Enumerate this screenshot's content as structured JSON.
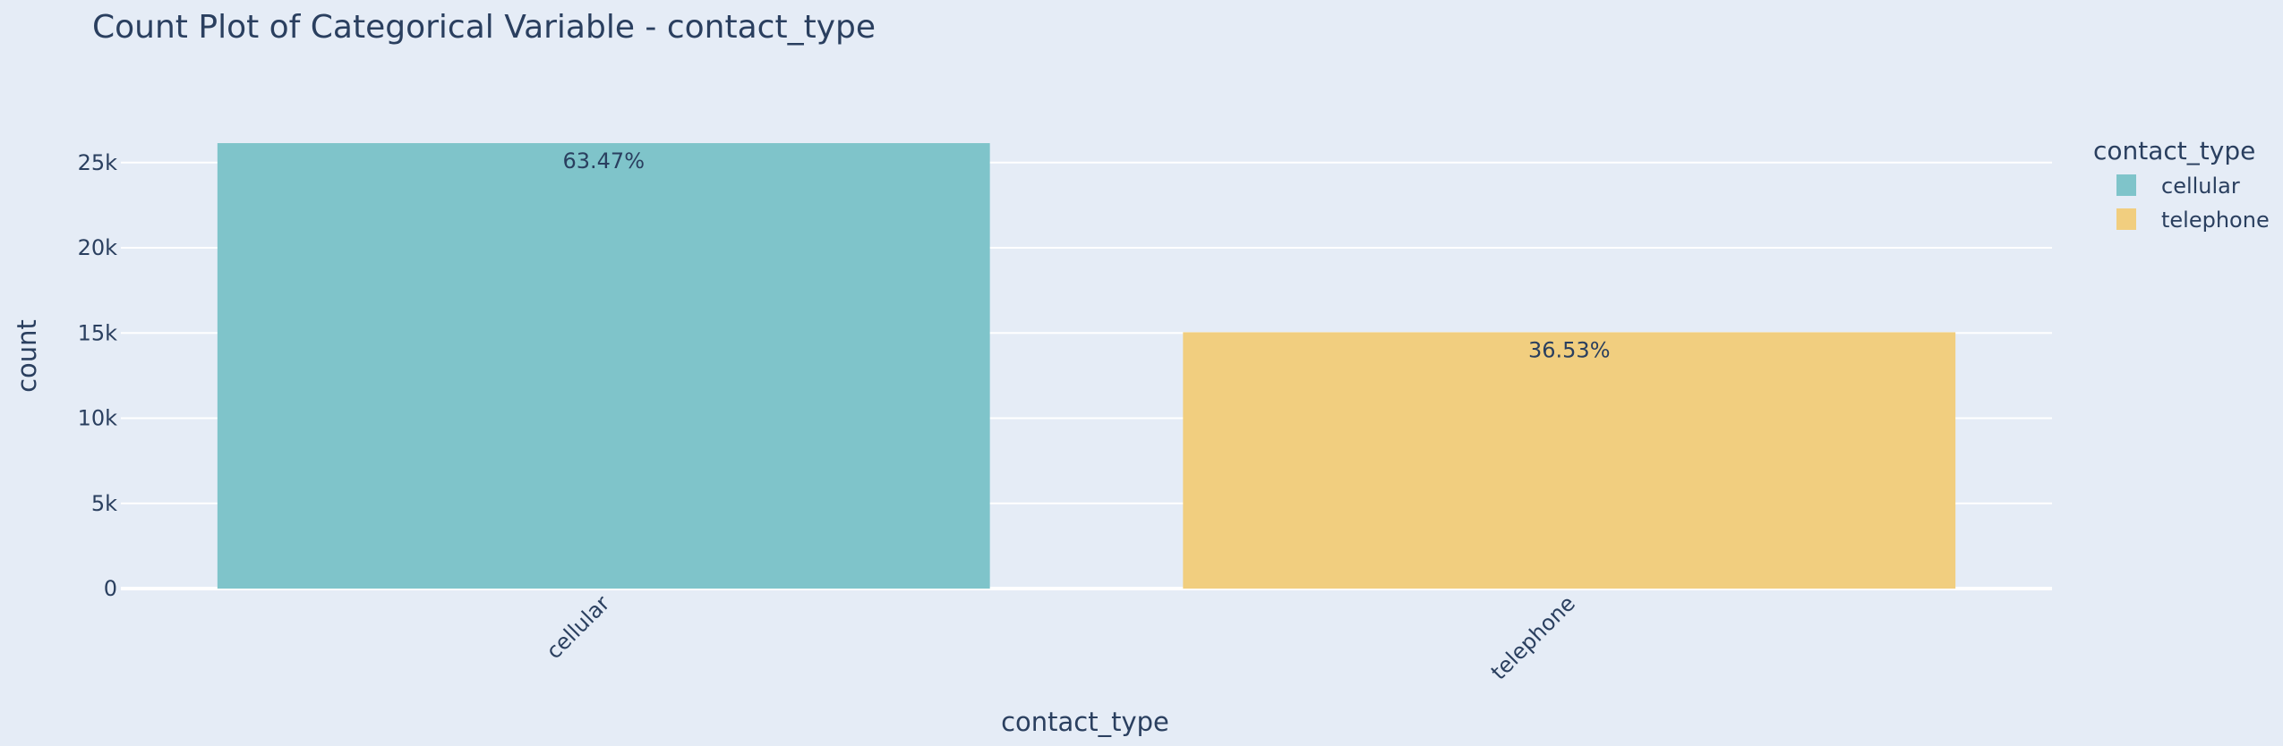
{
  "chart_data": {
    "type": "bar",
    "title": "Count Plot of Categorical Variable - contact_type",
    "xlabel": "contact_type",
    "ylabel": "count",
    "categories": [
      "cellular",
      "telephone"
    ],
    "values": [
      26144,
      15044
    ],
    "data_labels": [
      "63.47%",
      "36.53%"
    ],
    "colors": [
      "#7fc4ca",
      "#f1ce7f"
    ],
    "ylim": [
      0,
      27300
    ],
    "yticks": [
      0,
      5000,
      10000,
      15000,
      20000,
      25000
    ],
    "ytick_labels": [
      "0",
      "5k",
      "10k",
      "15k",
      "20k",
      "25k"
    ],
    "grid": true,
    "legend": {
      "title": "contact_type",
      "placement": "top-right",
      "items": [
        "cellular",
        "telephone"
      ]
    }
  },
  "colors": {
    "plot_background": "#e5ecf6",
    "text": "#2a3f5f"
  }
}
